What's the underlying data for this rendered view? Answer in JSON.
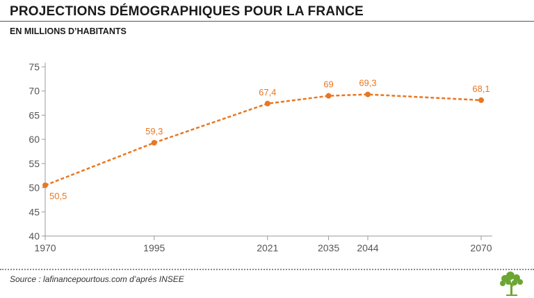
{
  "header": {
    "title": "PROJECTIONS DÉMOGRAPHIQUES POUR LA FRANCE",
    "subtitle": "EN MILLIONS D’HABITANTS"
  },
  "footer": {
    "source": "Source : lafinancepourtous.com d’aprés INSEE",
    "logo_icon": "tree-logo-icon"
  },
  "colors": {
    "series": "#e87722",
    "axis": "#9a9a9a",
    "text": "#555555",
    "logo": "#6aa632"
  },
  "chart_data": {
    "type": "line",
    "title": "PROJECTIONS DÉMOGRAPHIQUES POUR LA FRANCE",
    "subtitle": "EN MILLIONS D’HABITANTS",
    "x": [
      1970,
      1995,
      2021,
      2035,
      2044,
      2070
    ],
    "x_tick_labels": [
      "1970",
      "1995",
      "2021",
      "2035",
      "2044",
      "2070"
    ],
    "series": [
      {
        "values": [
          50.5,
          59.3,
          67.4,
          69,
          69.3,
          68.1
        ],
        "labels": [
          "50,5",
          "59,3",
          "67,4",
          "69",
          "69,3",
          "68,1"
        ],
        "style": "dashed",
        "markers": true
      }
    ],
    "ylim": [
      40,
      75
    ],
    "yticks": [
      40,
      45,
      50,
      55,
      60,
      65,
      70,
      75
    ],
    "xlim": [
      1970,
      2074
    ],
    "grid": false,
    "xlabel": "",
    "ylabel": ""
  }
}
